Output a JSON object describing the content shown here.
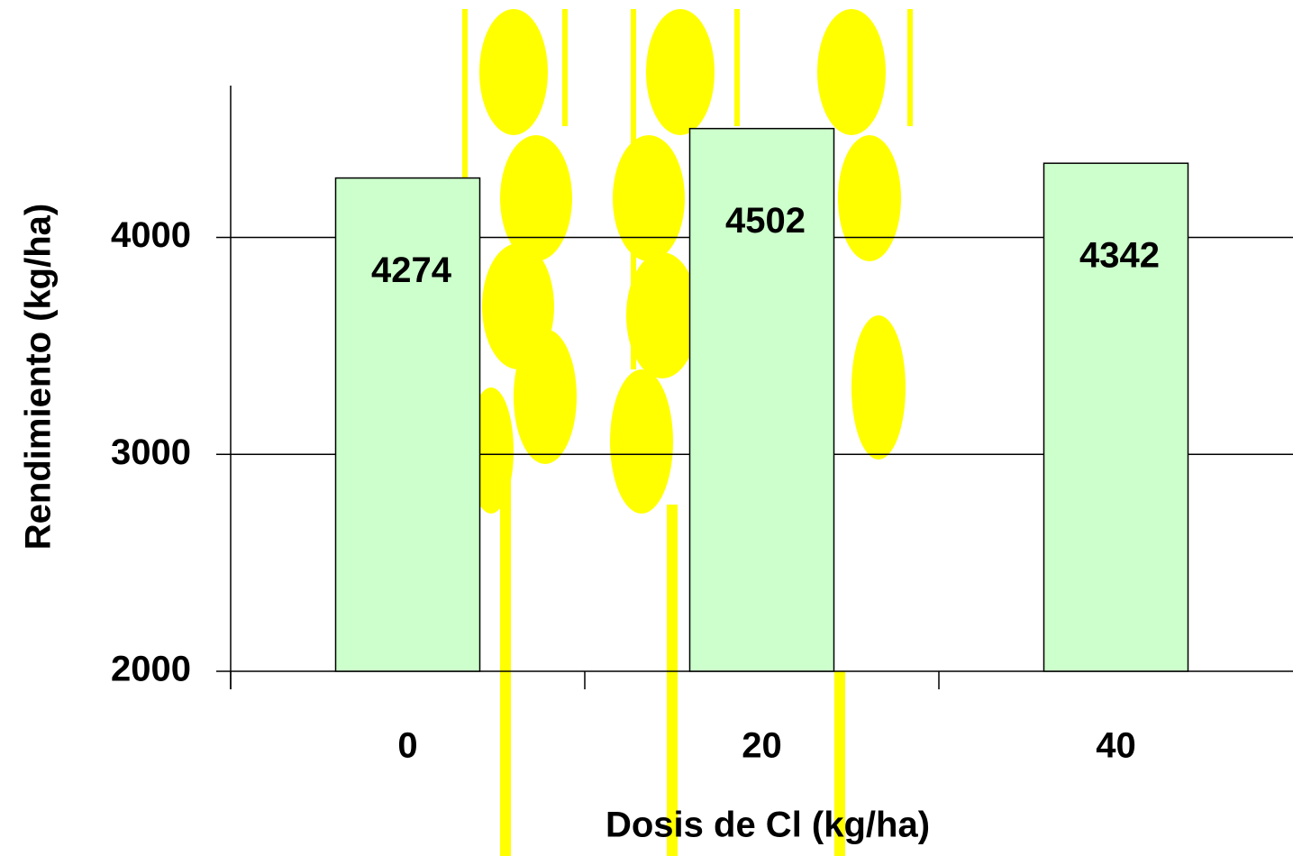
{
  "chart_data": {
    "type": "bar",
    "categories": [
      "0",
      "20",
      "40"
    ],
    "values": [
      4274,
      4502,
      4342
    ],
    "color": "#ccffcc",
    "ylim": [
      2000,
      4700
    ],
    "yticks": [
      2000,
      3000,
      4000
    ],
    "grid": true,
    "xlabel": "Dosis de Cl (kg/ha)",
    "ylabel": "Rendimiento (kg/ha)"
  }
}
